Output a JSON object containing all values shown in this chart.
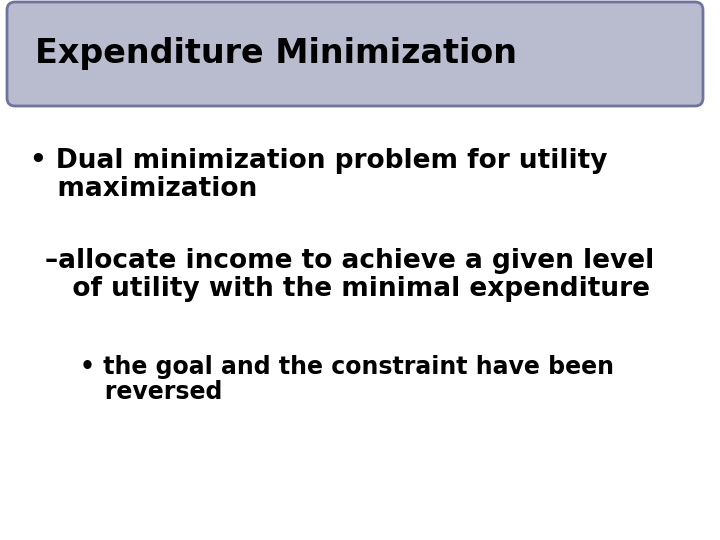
{
  "title": "Expenditure Minimization",
  "title_fontsize": 24,
  "title_box_facecolor": "#b8bcce",
  "title_box_edgecolor": "#6e74a0",
  "background_color": "#ffffff",
  "text_color": "#000000",
  "bullet1_line1": "• Dual minimization problem for utility",
  "bullet1_line2": "   maximization",
  "bullet2_line1": "–allocate income to achieve a given level",
  "bullet2_line2": "   of utility with the minimal expenditure",
  "bullet3_line1": "• the goal and the constraint have been",
  "bullet3_line2": "   reversed",
  "body_fontsize": 19,
  "sub_fontsize": 19,
  "subsub_fontsize": 17
}
